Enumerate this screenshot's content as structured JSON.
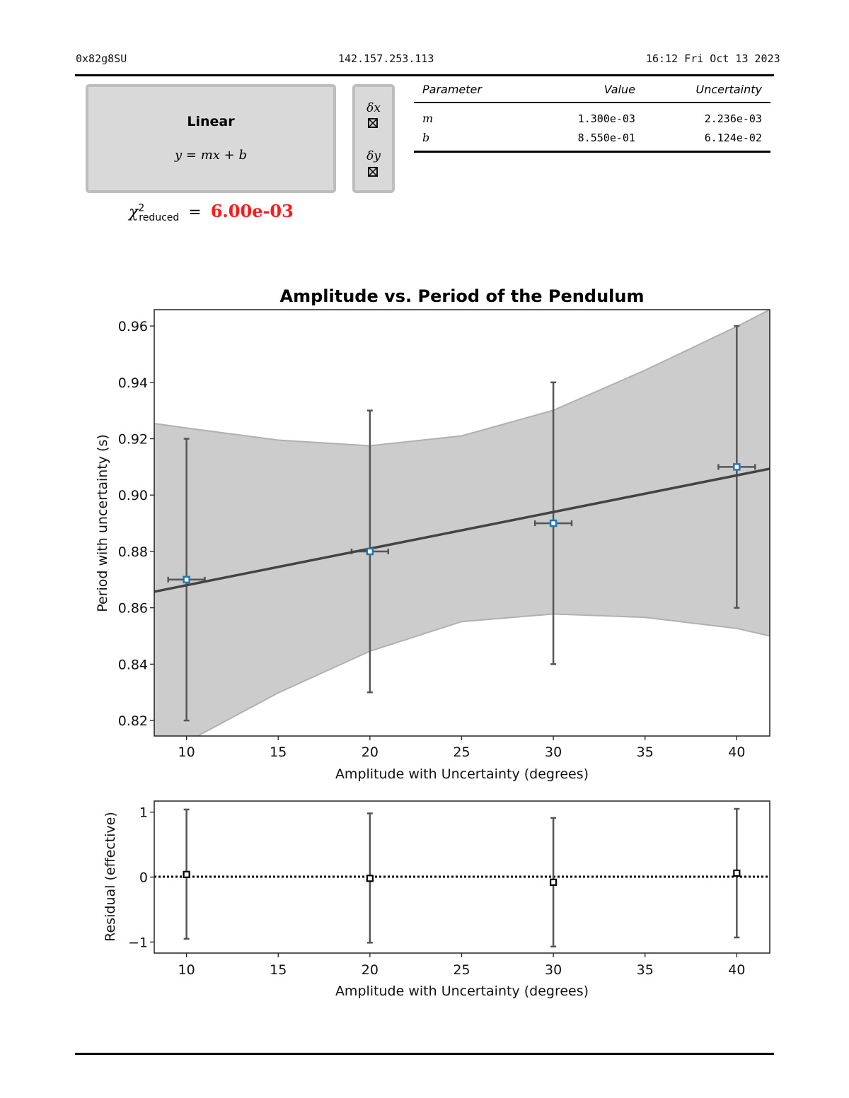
{
  "header": {
    "session_id": "0x82g8SU",
    "ip_address": "142.157.253.113",
    "datetime": "16:12 Fri Oct 13 2023"
  },
  "model": {
    "name": "Linear",
    "equation": "y = mx + b"
  },
  "uncertainty_toggles": [
    {
      "label": "δx",
      "checked": true
    },
    {
      "label": "δy",
      "checked": true
    }
  ],
  "chi_squared": {
    "symbol": "χ",
    "superscript": "2",
    "subscript": "reduced",
    "equals": "=",
    "value": "6.00e-03",
    "value_color": "#ff1a1a"
  },
  "parameters_table": {
    "headers": [
      "Parameter",
      "Value",
      "Uncertainty"
    ],
    "rows": [
      {
        "name": "m",
        "value": "1.300e-03",
        "uncertainty": "2.236e-03"
      },
      {
        "name": "b",
        "value": "8.550e-01",
        "uncertainty": "6.124e-02"
      }
    ]
  },
  "chart_data": [
    {
      "type": "scatter",
      "title": "Amplitude vs. Period of the Pendulum",
      "xlabel": "Amplitude with Uncertainty (degrees)",
      "ylabel": "Period with uncertainty (s)",
      "xlim": [
        8.24,
        41.8
      ],
      "ylim": [
        0.8145,
        0.9658
      ],
      "xticks": [
        10,
        15,
        20,
        25,
        30,
        35,
        40
      ],
      "xtick_labels": [
        "10",
        "15",
        "20",
        "25",
        "30",
        "35",
        "40"
      ],
      "yticks": [
        0.82,
        0.84,
        0.86,
        0.88,
        0.9,
        0.92,
        0.94,
        0.96
      ],
      "ytick_labels": [
        "0.82",
        "0.84",
        "0.86",
        "0.88",
        "0.90",
        "0.92",
        "0.94",
        "0.96"
      ],
      "grid": false,
      "series": [
        {
          "name": "data",
          "marker": "square",
          "marker_color": "#1f77b4",
          "x": [
            10,
            20,
            30,
            40
          ],
          "y": [
            0.87,
            0.88,
            0.89,
            0.91
          ],
          "xerr": [
            1,
            1,
            1,
            1
          ],
          "yerr": [
            0.05,
            0.05,
            0.05,
            0.05
          ]
        },
        {
          "name": "fit",
          "type": "line",
          "color": "#444444",
          "slope": 0.0013,
          "intercept": 0.855
        },
        {
          "name": "confidence band",
          "type": "area",
          "fill": "#cccccc",
          "upper": {
            "x": [
              8.24,
              10,
              15,
              20,
              25,
              30,
              35,
              40,
              41.8
            ],
            "y": [
              0.9254,
              0.9238,
              0.9195,
              0.9175,
              0.921,
              0.9301,
              0.9443,
              0.9598,
              0.9658
            ]
          },
          "lower": {
            "x": [
              10.6,
              15,
              20,
              25,
              30,
              35,
              40,
              41.8
            ],
            "y": [
              0.8145,
              0.8298,
              0.8446,
              0.8551,
              0.8578,
              0.8566,
              0.8527,
              0.85
            ]
          }
        }
      ]
    },
    {
      "type": "scatter",
      "title": "",
      "xlabel": "Amplitude with Uncertainty (degrees)",
      "ylabel": "Residual (effective)",
      "xlim": [
        8.24,
        41.8
      ],
      "ylim": [
        -1.17,
        1.17
      ],
      "xticks": [
        10,
        15,
        20,
        25,
        30,
        35,
        40
      ],
      "xtick_labels": [
        "10",
        "15",
        "20",
        "25",
        "30",
        "35",
        "40"
      ],
      "yticks": [
        -1,
        0,
        1
      ],
      "ytick_labels": [
        "−1",
        "0",
        "1"
      ],
      "zero_line": "dotted",
      "series": [
        {
          "name": "residuals",
          "marker": "square",
          "marker_color": "#000000",
          "x": [
            10,
            20,
            30,
            40
          ],
          "y": [
            0.04,
            -0.02,
            -0.08,
            0.06
          ],
          "yerr_low": [
            -0.95,
            -1.01,
            -1.07,
            -0.93
          ],
          "yerr_high": [
            1.04,
            0.98,
            0.91,
            1.05
          ]
        }
      ]
    }
  ]
}
